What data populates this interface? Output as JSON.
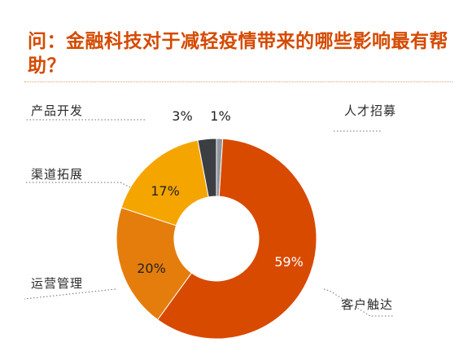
{
  "title": "问：金融科技对于减轻疫情带来的哪些影响最有帮助？",
  "chart_data": {
    "type": "pie",
    "style": "donut",
    "values": [
      1,
      59,
      20,
      17,
      3
    ],
    "category_labels": [
      "人才招募",
      "客户触达",
      "运营管理",
      "渠道拓展",
      "产品开发"
    ],
    "value_labels": [
      "1%",
      "59%",
      "20%",
      "17%",
      "3%"
    ],
    "colors": [
      "#8f969c",
      "#d84a00",
      "#e57d0c",
      "#f5a500",
      "#3b3f44"
    ],
    "label_colors": [
      "#222222",
      "#ffffff",
      "#222222",
      "#222222",
      "#222222"
    ]
  }
}
